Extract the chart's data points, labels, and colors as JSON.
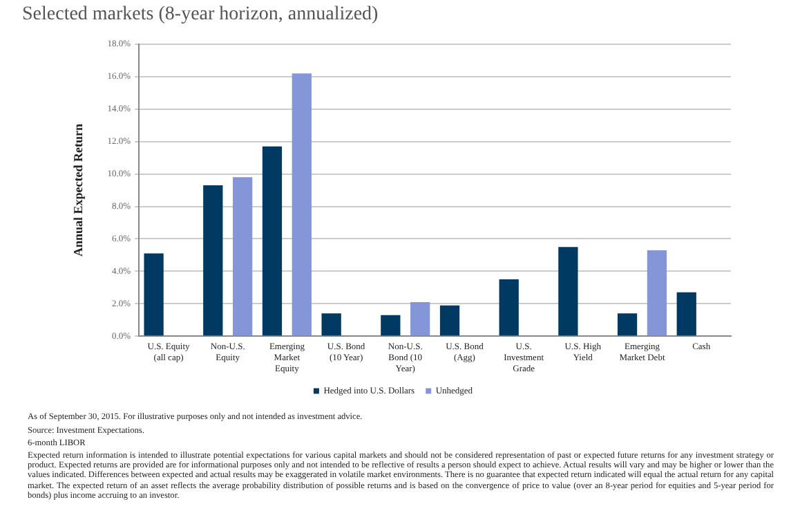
{
  "chart_data": {
    "type": "bar",
    "title": "Selected markets (8-year horizon, annualized)",
    "ylabel": "Annual Expected Return",
    "categories": [
      "U.S. Equity (all cap)",
      "Non-U.S. Equity",
      "Emerging Market Equity",
      "U.S. Bond (10 Year)",
      "Non-U.S. Bond (10 Year)",
      "U.S. Bond (Agg)",
      "U.S. Investment Grade",
      "U.S. High Yield",
      "Emerging Market Debt",
      "Cash"
    ],
    "series": [
      {
        "name": "Hedged into U.S. Dollars",
        "color": "#003a63",
        "values": [
          5.1,
          9.3,
          11.7,
          1.4,
          1.3,
          1.9,
          3.5,
          5.5,
          1.4,
          2.7
        ]
      },
      {
        "name": "Unhedged",
        "color": "#8495d8",
        "values": [
          null,
          9.8,
          16.2,
          null,
          2.1,
          null,
          null,
          null,
          5.3,
          null
        ]
      }
    ],
    "ylim": [
      0,
      18
    ],
    "yticks": [
      {
        "value": 0,
        "label": "0.0%"
      },
      {
        "value": 2,
        "label": "2.0%"
      },
      {
        "value": 4,
        "label": "4.0%"
      },
      {
        "value": 6,
        "label": "6.0%"
      },
      {
        "value": 8,
        "label": "8.0%"
      },
      {
        "value": 10,
        "label": "10.0%"
      },
      {
        "value": 12,
        "label": "12.0%"
      },
      {
        "value": 14,
        "label": "14.0%"
      },
      {
        "value": 16,
        "label": "16.0%"
      },
      {
        "value": 18,
        "label": "18.0%"
      }
    ],
    "grid": "y",
    "legend": "bottom",
    "annotations": [
      "As of September 30, 2015. For illustrative purposes only and not intended as investment advice.",
      "Source: Investment Expectations.",
      "6-month LIBOR",
      "Expected return information is intended to illustrate potential expectations for various capital markets and should not be considered representation of past or expected future returns for any investment strategy or product.  Expected returns are provided are for informational purposes only and not intended to be reflective of results a person should expect to achieve.  Actual results will vary and may be higher or lower than the values indicated.  Differences between expected and actual results may be exaggerated in volatile market environments.  There is no guarantee that expected return indicated will equal the actual return for any capital market. The expected return of an asset reflects the average probability distribution of possible returns and is based on the convergence of price to value (over an 8-year period for equities and 5-year period for bonds) plus income accruing to an investor."
    ]
  }
}
